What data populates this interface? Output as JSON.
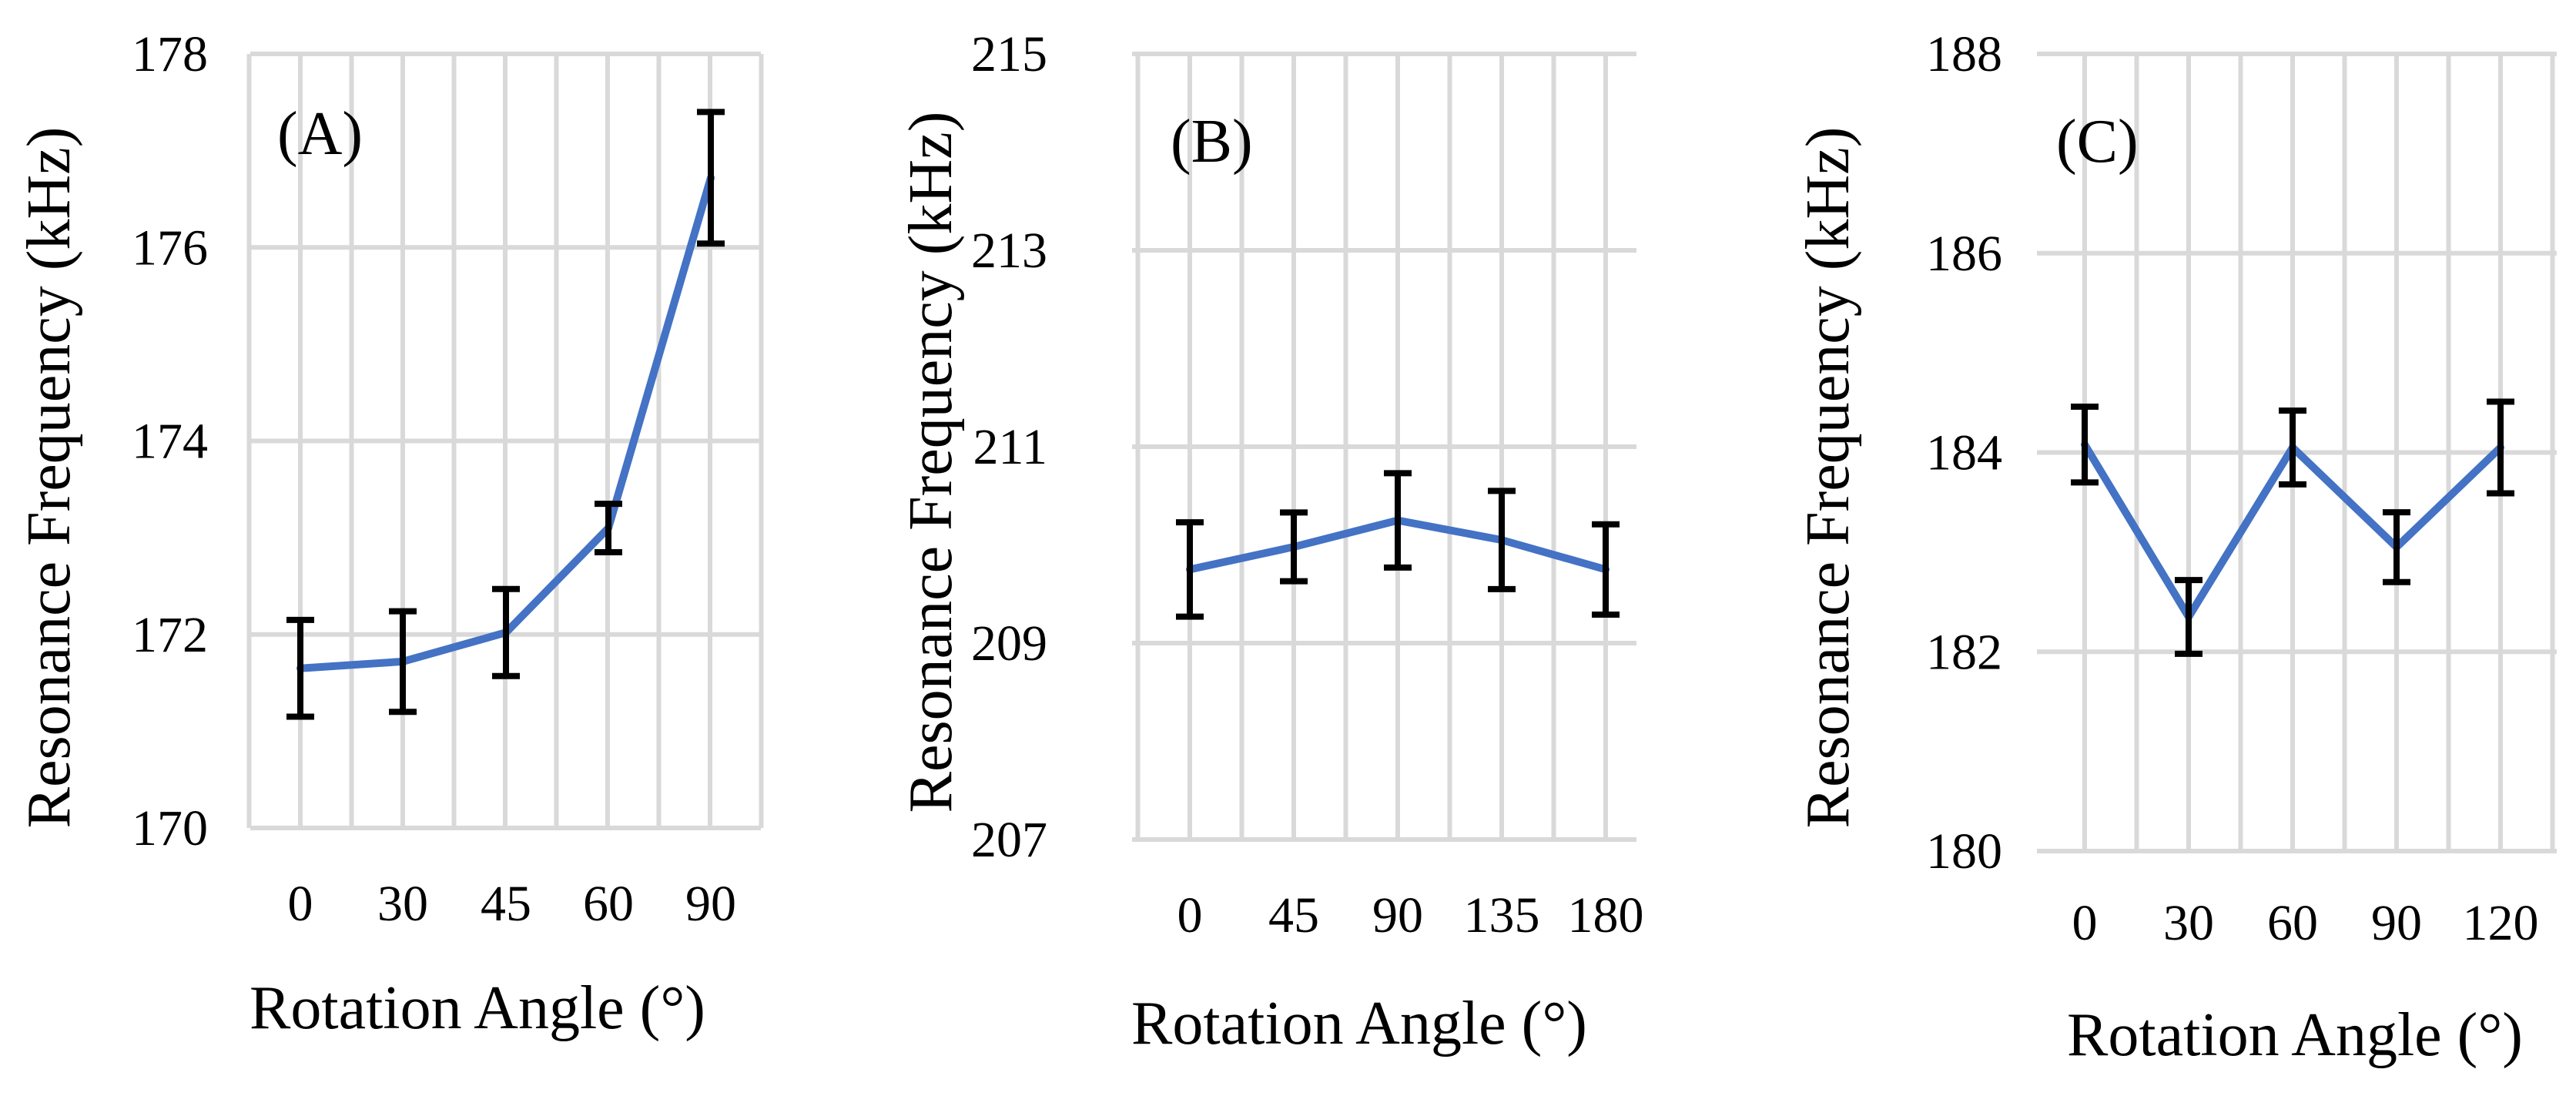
{
  "chart_data": [
    {
      "type": "line",
      "panel_label": "(A)",
      "xlabel": "Rotation Angle (°)",
      "ylabel": "Resonance Frequency (kHz)",
      "categories": [
        "0",
        "30",
        "45",
        "60",
        "90"
      ],
      "ylim": [
        170,
        178
      ],
      "yticks": [
        "170",
        "172",
        "174",
        "176",
        "178"
      ],
      "grid": true,
      "series": [
        {
          "values": [
            171.65,
            171.72,
            172.02,
            173.1,
            176.72
          ],
          "errors": [
            0.5,
            0.52,
            0.45,
            0.25,
            0.68
          ]
        }
      ]
    },
    {
      "type": "line",
      "panel_label": "(B)",
      "xlabel": "Rotation Angle (°)",
      "ylabel": "Resonance Frequency (kHz)",
      "categories": [
        "0",
        "45",
        "90",
        "135",
        "180"
      ],
      "ylim": [
        207,
        215
      ],
      "yticks": [
        "207",
        "209",
        "211",
        "213",
        "215"
      ],
      "grid": true,
      "series": [
        {
          "values": [
            209.75,
            209.98,
            210.25,
            210.05,
            209.75
          ],
          "errors": [
            0.48,
            0.35,
            0.48,
            0.5,
            0.46
          ]
        }
      ]
    },
    {
      "type": "line",
      "panel_label": "(C)",
      "xlabel": "Rotation Angle (°)",
      "ylabel": "Resonance Frequency (kHz)",
      "categories": [
        "0",
        "30",
        "60",
        "90",
        "120"
      ],
      "ylim": [
        180,
        188
      ],
      "yticks": [
        "180",
        "182",
        "184",
        "186",
        "188"
      ],
      "grid": true,
      "series": [
        {
          "values": [
            184.08,
            182.35,
            184.05,
            183.05,
            184.05
          ],
          "errors": [
            0.38,
            0.37,
            0.37,
            0.35,
            0.46
          ]
        }
      ]
    }
  ],
  "colors": {
    "series_line": "#4472c4",
    "error_bar": "#000000",
    "grid": "#d9d9d9"
  }
}
